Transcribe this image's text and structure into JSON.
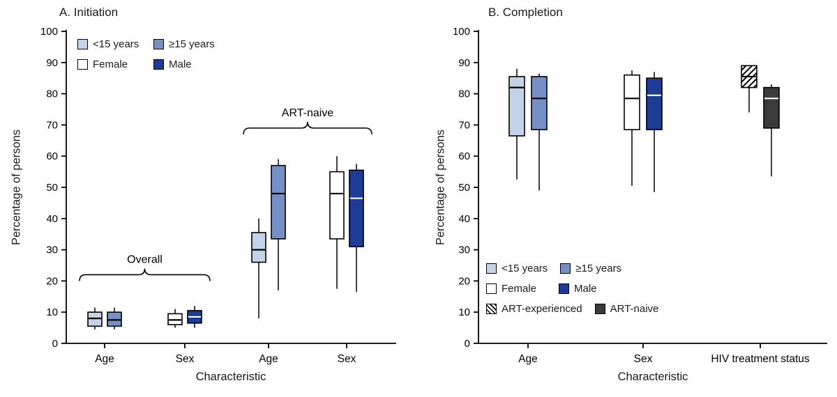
{
  "colors": {
    "lt15": "#c5d3e9",
    "ge15": "#7590c6",
    "female": "#ffffff",
    "male": "#1e3c96",
    "art_naive": "#3b3b3b",
    "axis": "#000000"
  },
  "chart_data": [
    {
      "type": "boxplot",
      "title": "A. Initiation",
      "ylabel": "Percentage of persons",
      "xlabel": "Characteristic",
      "ylim": [
        0,
        100
      ],
      "yticks": [
        0,
        10,
        20,
        30,
        40,
        50,
        60,
        70,
        80,
        90,
        100
      ],
      "grid": false,
      "legend_position": "top-left-inside",
      "legend": [
        {
          "label": "<15 years",
          "fill": "lt15"
        },
        {
          "label": "≥15 years",
          "fill": "ge15"
        },
        {
          "label": "Female",
          "fill": "female"
        },
        {
          "label": "Male",
          "fill": "male"
        }
      ],
      "annotations": [
        {
          "label": "Overall",
          "group_start": 0,
          "group_end": 1,
          "brace_y": 22
        },
        {
          "label": "ART-naive",
          "group_start": 2,
          "group_end": 3,
          "brace_y": 69
        }
      ],
      "groups": [
        {
          "category": "Age",
          "boxes": [
            {
              "series": "<15 years",
              "fill": "lt15",
              "median_color": "#000000",
              "low": 4.5,
              "q1": 5.5,
              "median": 8,
              "q3": 10,
              "high": 11.5
            },
            {
              "series": "≥15 years",
              "fill": "ge15",
              "median_color": "#000000",
              "low": 4.5,
              "q1": 5.5,
              "median": 7.5,
              "q3": 10,
              "high": 11.5
            }
          ]
        },
        {
          "category": "Sex",
          "boxes": [
            {
              "series": "Female",
              "fill": "female",
              "median_color": "#000000",
              "low": 5,
              "q1": 6,
              "median": 7.5,
              "q3": 9.5,
              "high": 11
            },
            {
              "series": "Male",
              "fill": "male",
              "median_color": "#ffffff",
              "low": 5,
              "q1": 6.5,
              "median": 8.5,
              "q3": 10.5,
              "high": 12
            }
          ]
        },
        {
          "category": "Age",
          "boxes": [
            {
              "series": "<15 years",
              "fill": "lt15",
              "median_color": "#000000",
              "low": 8,
              "q1": 26,
              "median": 30,
              "q3": 35.5,
              "high": 40
            },
            {
              "series": "≥15 years",
              "fill": "ge15",
              "median_color": "#000000",
              "low": 17,
              "q1": 33.5,
              "median": 48,
              "q3": 57,
              "high": 59
            }
          ]
        },
        {
          "category": "Sex",
          "boxes": [
            {
              "series": "Female",
              "fill": "female",
              "median_color": "#000000",
              "low": 17.5,
              "q1": 33.5,
              "median": 48,
              "q3": 55,
              "high": 60
            },
            {
              "series": "Male",
              "fill": "male",
              "median_color": "#ffffff",
              "low": 16.5,
              "q1": 31,
              "median": 46.5,
              "q3": 55.5,
              "high": 57.5
            }
          ]
        }
      ]
    },
    {
      "type": "boxplot",
      "title": "B. Completion",
      "ylabel": "Percentage of persons",
      "xlabel": "Characteristic",
      "ylim": [
        0,
        100
      ],
      "yticks": [
        0,
        10,
        20,
        30,
        40,
        50,
        60,
        70,
        80,
        90,
        100
      ],
      "grid": false,
      "legend_position": "bottom-left-inside",
      "legend": [
        {
          "label": "<15 years",
          "fill": "lt15"
        },
        {
          "label": "≥15 years",
          "fill": "ge15"
        },
        {
          "label": "Female",
          "fill": "female"
        },
        {
          "label": "Male",
          "fill": "male"
        },
        {
          "label": "ART-experienced",
          "fill": "hatch"
        },
        {
          "label": "ART-naive",
          "fill": "art_naive"
        }
      ],
      "annotations": [],
      "groups": [
        {
          "category": "Age",
          "boxes": [
            {
              "series": "<15 years",
              "fill": "lt15",
              "median_color": "#000000",
              "low": 52.5,
              "q1": 66.5,
              "median": 82,
              "q3": 85.5,
              "high": 88
            },
            {
              "series": "≥15 years",
              "fill": "ge15",
              "median_color": "#000000",
              "low": 49,
              "q1": 68.5,
              "median": 78.5,
              "q3": 85.5,
              "high": 86.5
            }
          ]
        },
        {
          "category": "Sex",
          "boxes": [
            {
              "series": "Female",
              "fill": "female",
              "median_color": "#000000",
              "low": 50.5,
              "q1": 68.5,
              "median": 78.5,
              "q3": 86,
              "high": 87.5
            },
            {
              "series": "Male",
              "fill": "male",
              "median_color": "#ffffff",
              "low": 48.5,
              "q1": 68.5,
              "median": 79.5,
              "q3": 85,
              "high": 87
            }
          ]
        },
        {
          "category": "HIV treatment status",
          "boxes": [
            {
              "series": "ART-experienced",
              "fill": "hatch",
              "median_color": "#000000",
              "low": 74,
              "q1": 82,
              "median": 85.5,
              "q3": 89,
              "high": 89
            },
            {
              "series": "ART-naive",
              "fill": "art_naive",
              "median_color": "#ffffff",
              "low": 53.5,
              "q1": 69,
              "median": 78.5,
              "q3": 82,
              "high": 83
            }
          ]
        }
      ]
    }
  ]
}
